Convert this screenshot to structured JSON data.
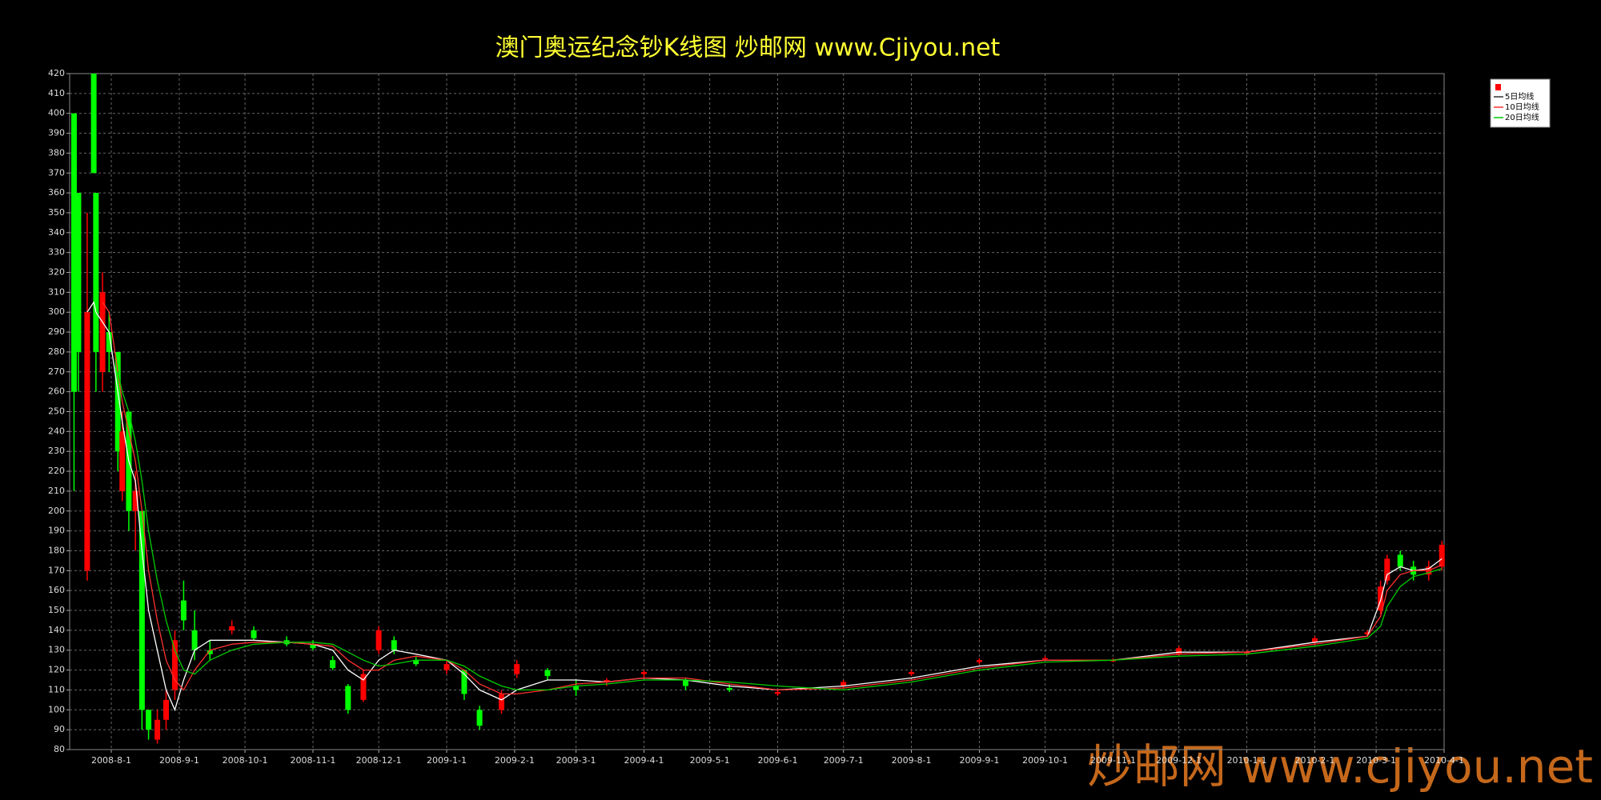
{
  "chart_data": {
    "type": "candlestick",
    "title": "澳门奥运纪念钞K线图  炒邮网 www.Cjiyou.net",
    "watermark": "炒邮网 www.cjiyou.net",
    "x": [
      "2008-7-15",
      "2008-7-17",
      "2008-7-21",
      "2008-7-24",
      "2008-7-25",
      "2008-7-28",
      "2008-7-31",
      "2008-8-4",
      "2008-8-6",
      "2008-8-9",
      "2008-8-12",
      "2008-8-15",
      "2008-8-18",
      "2008-8-22",
      "2008-8-26",
      "2008-8-30",
      "2008-9-3",
      "2008-9-8",
      "2008-9-15",
      "2008-9-25",
      "2008-10-5",
      "2008-10-20",
      "2008-11-1",
      "2008-11-10",
      "2008-11-17",
      "2008-11-24",
      "2008-12-1",
      "2008-12-8",
      "2008-12-18",
      "2009-1-1",
      "2009-1-9",
      "2009-1-16",
      "2009-1-26",
      "2009-2-2",
      "2009-2-16",
      "2009-3-1",
      "2009-3-15",
      "2009-4-1",
      "2009-4-20",
      "2009-5-10",
      "2009-6-1",
      "2009-7-1",
      "2009-8-1",
      "2009-9-1",
      "2009-10-1",
      "2009-11-1",
      "2009-12-1",
      "2010-1-1",
      "2010-2-1",
      "2010-2-25",
      "2010-3-3",
      "2010-3-6",
      "2010-3-12",
      "2010-3-18",
      "2010-3-25",
      "2010-3-31"
    ],
    "open": [
      400,
      360,
      170,
      420,
      360,
      270,
      290,
      280,
      210,
      250,
      200,
      200,
      100,
      85,
      95,
      110,
      155,
      140,
      130,
      140,
      140,
      135,
      133,
      125,
      112,
      105,
      130,
      135,
      125,
      120,
      120,
      100,
      100,
      118,
      120,
      112,
      114,
      118,
      115,
      111,
      108,
      112,
      118,
      124,
      126,
      125,
      128,
      129,
      134,
      138,
      150,
      165,
      178,
      172,
      168,
      172
    ],
    "high": [
      400,
      360,
      350,
      420,
      360,
      320,
      300,
      280,
      250,
      250,
      220,
      200,
      100,
      100,
      110,
      140,
      165,
      150,
      135,
      145,
      142,
      137,
      135,
      127,
      113,
      120,
      142,
      137,
      127,
      125,
      120,
      102,
      110,
      125,
      121,
      115,
      116,
      120,
      116,
      113,
      110,
      115,
      120,
      126,
      127,
      126,
      132,
      130,
      137,
      140,
      165,
      178,
      180,
      175,
      175,
      185
    ],
    "low": [
      210,
      260,
      165,
      370,
      260,
      260,
      270,
      220,
      205,
      190,
      180,
      90,
      85,
      83,
      90,
      105,
      140,
      125,
      125,
      138,
      135,
      132,
      130,
      120,
      98,
      104,
      128,
      128,
      122,
      118,
      105,
      90,
      98,
      116,
      115,
      107,
      112,
      116,
      110,
      109,
      107,
      111,
      117,
      123,
      125,
      124,
      127,
      128,
      133,
      137,
      148,
      163,
      170,
      165,
      165,
      170
    ],
    "close": [
      260,
      280,
      300,
      370,
      280,
      310,
      280,
      230,
      240,
      200,
      210,
      100,
      90,
      95,
      105,
      135,
      145,
      130,
      128,
      142,
      136,
      133,
      131,
      121,
      100,
      118,
      140,
      130,
      123,
      123,
      108,
      92,
      108,
      123,
      117,
      110,
      115,
      119,
      112,
      110,
      109,
      114,
      119,
      125,
      126,
      125,
      131,
      129,
      136,
      139,
      162,
      176,
      172,
      168,
      172,
      183
    ],
    "up_color": "#ff0000",
    "down_color": "#00ff00",
    "series": [
      {
        "name": "5日均线",
        "color": "#ffffff",
        "values": [
          null,
          null,
          300,
          305,
          300,
          295,
          290,
          260,
          245,
          225,
          215,
          180,
          150,
          130,
          110,
          100,
          115,
          130,
          135,
          135,
          135,
          134,
          133,
          130,
          120,
          115,
          125,
          130,
          128,
          125,
          118,
          110,
          105,
          110,
          115,
          115,
          114,
          116,
          115,
          112,
          110,
          112,
          116,
          122,
          125,
          125,
          129,
          129,
          134,
          137,
          155,
          168,
          172,
          170,
          171,
          176
        ]
      },
      {
        "name": "10日均线",
        "color": "#ff3030",
        "values": [
          null,
          null,
          null,
          null,
          null,
          305,
          300,
          270,
          255,
          240,
          225,
          200,
          170,
          145,
          125,
          115,
          110,
          120,
          130,
          133,
          134,
          134,
          133,
          132,
          125,
          120,
          120,
          125,
          127,
          125,
          120,
          113,
          108,
          108,
          110,
          113,
          114,
          116,
          116,
          113,
          110,
          111,
          115,
          121,
          125,
          125,
          128,
          129,
          133,
          137,
          147,
          160,
          168,
          170,
          170,
          173
        ]
      },
      {
        "name": "20日均线",
        "color": "#00cc00",
        "values": [
          null,
          null,
          null,
          null,
          null,
          null,
          null,
          270,
          260,
          250,
          235,
          215,
          190,
          165,
          145,
          130,
          120,
          118,
          125,
          130,
          133,
          134,
          134,
          133,
          129,
          125,
          122,
          123,
          125,
          125,
          122,
          117,
          112,
          110,
          110,
          112,
          113,
          115,
          115,
          114,
          112,
          110,
          114,
          120,
          124,
          125,
          127,
          128,
          132,
          136,
          142,
          152,
          162,
          167,
          169,
          171
        ]
      }
    ],
    "xlim": [
      "2008-7-13",
      "2010-4-1"
    ],
    "xticks": [
      "2008-8-1",
      "2008-9-1",
      "2008-10-1",
      "2008-11-1",
      "2008-12-1",
      "2009-1-1",
      "2009-2-1",
      "2009-3-1",
      "2009-4-1",
      "2009-5-1",
      "2009-6-1",
      "2009-7-1",
      "2009-8-1",
      "2009-9-1",
      "2009-10-1",
      "2009-11-1",
      "2009-12-1",
      "2010-1-1",
      "2010-2-1",
      "2010-3-1",
      "2010-4-1"
    ],
    "ylim": [
      80,
      420
    ],
    "yticks": [
      80,
      90,
      100,
      110,
      120,
      130,
      140,
      150,
      160,
      170,
      180,
      190,
      200,
      210,
      220,
      230,
      240,
      250,
      260,
      270,
      280,
      290,
      300,
      310,
      320,
      330,
      340,
      350,
      360,
      370,
      380,
      390,
      400,
      410,
      420
    ],
    "grid": true,
    "legend": "upper right"
  }
}
